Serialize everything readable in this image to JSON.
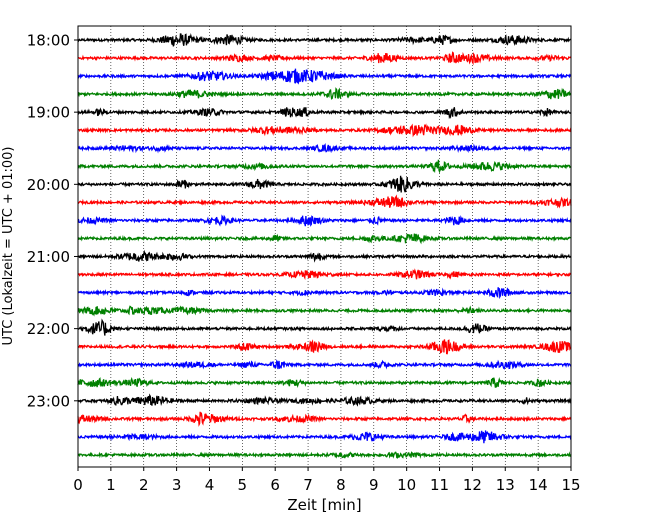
{
  "chart_data": {
    "type": "line",
    "title": "",
    "xlabel": "Zeit  [min]",
    "ylabel": "UTC (Lokalzeit = UTC + 01:00)",
    "xlim": [
      0,
      15
    ],
    "x_ticks": [
      0,
      1,
      2,
      3,
      4,
      5,
      6,
      7,
      8,
      9,
      10,
      11,
      12,
      13,
      14,
      15
    ],
    "x_tick_labels": [
      "0",
      "1",
      "2",
      "3",
      "4",
      "5",
      "6",
      "7",
      "8",
      "9",
      "10",
      "11",
      "12",
      "13",
      "14",
      "15"
    ],
    "y_tick_labels": [
      "18:00",
      "19:00",
      "20:00",
      "21:00",
      "22:00",
      "23:00"
    ],
    "y_tick_rows": [
      0,
      4,
      8,
      12,
      16,
      20
    ],
    "row_count": 24,
    "row_colors": [
      "#000000",
      "#ff0000",
      "#0000ff",
      "#008000"
    ],
    "vertical_grid": true,
    "grid_style": "dotted",
    "legend": "none"
  }
}
